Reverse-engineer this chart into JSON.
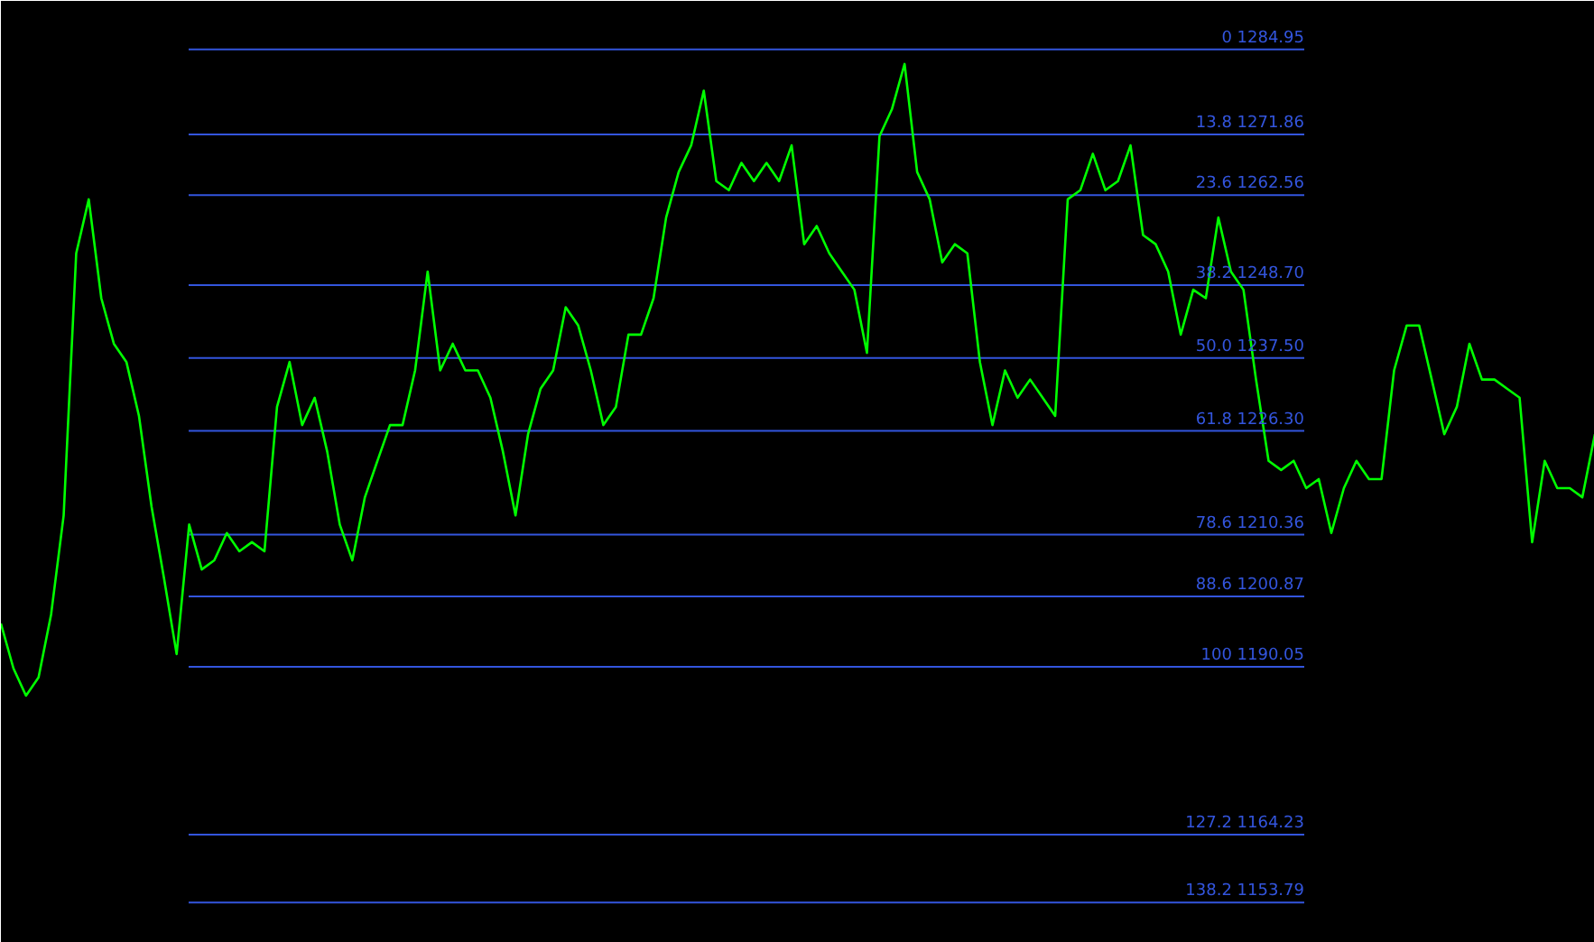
{
  "chart_data": {
    "type": "line",
    "color": "#00ff00",
    "ylim": [
      1147.6,
      1292.4
    ],
    "tick_labels": false,
    "grid": false,
    "categories": [
      null,
      null,
      null,
      null,
      null,
      null,
      null,
      null,
      null,
      null,
      null,
      null,
      null,
      null,
      null,
      null,
      null,
      null,
      null,
      null,
      null,
      null,
      null,
      null,
      null,
      null,
      null,
      null,
      null,
      null,
      null,
      null,
      null,
      null,
      null,
      null,
      null,
      null,
      null,
      null,
      null,
      null,
      null,
      null,
      null,
      null,
      null,
      null,
      null,
      null,
      null,
      null,
      null,
      null,
      null,
      null,
      null,
      null,
      null,
      null,
      null,
      null,
      null,
      null,
      null,
      null,
      null,
      null,
      null,
      null,
      null,
      null,
      null,
      null,
      null,
      null,
      null,
      null,
      null,
      null,
      null,
      null,
      null,
      null,
      null,
      null,
      null,
      null,
      null,
      null,
      null,
      null,
      null,
      null,
      null,
      null,
      null,
      null,
      null,
      null,
      null,
      null,
      null,
      null,
      null,
      null,
      null,
      null,
      null,
      null,
      null,
      null,
      null,
      null,
      null,
      null,
      null,
      null,
      null,
      null,
      null,
      null,
      null,
      null,
      null,
      null,
      null,
      null
    ],
    "values": [
      1196.7,
      1189.8,
      1185.6,
      1188.4,
      1198.1,
      1213.3,
      1253.6,
      1261.9,
      1246.7,
      1239.7,
      1236.9,
      1228.6,
      1214.7,
      1203.6,
      1192.0,
      1211.9,
      1205.0,
      1206.4,
      1210.6,
      1207.8,
      1209.2,
      1207.8,
      1230.0,
      1236.9,
      1227.2,
      1231.4,
      1223.1,
      1211.9,
      1206.4,
      1216.1,
      1221.7,
      1227.2,
      1227.2,
      1235.6,
      1250.8,
      1235.6,
      1239.7,
      1235.6,
      1235.6,
      1231.4,
      1223.1,
      1213.3,
      1225.8,
      1232.8,
      1235.6,
      1245.3,
      1242.5,
      1235.6,
      1227.2,
      1230.0,
      1241.1,
      1241.1,
      1246.7,
      1259.1,
      1266.1,
      1270.2,
      1278.6,
      1264.7,
      1263.3,
      1267.5,
      1264.7,
      1267.5,
      1264.7,
      1270.2,
      1255.0,
      1257.8,
      1253.6,
      1250.8,
      1248.0,
      1238.3,
      1271.6,
      1275.8,
      1282.7,
      1266.1,
      1261.9,
      1252.2,
      1255.0,
      1253.6,
      1236.9,
      1227.2,
      1235.6,
      1231.4,
      1234.2,
      1231.4,
      1228.6,
      1261.9,
      1263.3,
      1268.9,
      1263.3,
      1264.7,
      1270.2,
      1256.4,
      1255.0,
      1250.8,
      1241.1,
      1248.0,
      1246.7,
      1259.1,
      1250.8,
      1248.0,
      1234.2,
      1221.7,
      1220.3,
      1221.7,
      1217.5,
      1218.9,
      1210.6,
      1217.5,
      1221.7,
      1218.9,
      1218.9,
      1235.6,
      1242.5,
      1242.5,
      1234.2,
      1225.8,
      1230.0,
      1239.7,
      1234.2,
      1234.2,
      1232.8,
      1231.4,
      1209.2,
      1221.7,
      1217.5,
      1217.5,
      1216.1,
      1225.8
    ],
    "ref_lines": [
      {
        "axis": "y",
        "value": 1284.95,
        "label": "0 1284.95",
        "color": "#3355dd"
      },
      {
        "axis": "y",
        "value": 1271.86,
        "label": "13.8 1271.86",
        "color": "#3355dd"
      },
      {
        "axis": "y",
        "value": 1262.56,
        "label": "23.6 1262.56",
        "color": "#3355dd"
      },
      {
        "axis": "y",
        "value": 1248.7,
        "label": "38.2 1248.70",
        "color": "#3355dd"
      },
      {
        "axis": "y",
        "value": 1237.5,
        "label": "50.0 1237.50",
        "color": "#3355dd"
      },
      {
        "axis": "y",
        "value": 1226.3,
        "label": "61.8 1226.30",
        "color": "#3355dd"
      },
      {
        "axis": "y",
        "value": 1210.36,
        "label": "78.6 1210.36",
        "color": "#3355dd"
      },
      {
        "axis": "y",
        "value": 1200.87,
        "label": "88.6 1200.87",
        "color": "#3355dd"
      },
      {
        "axis": "y",
        "value": 1190.05,
        "label": "100 1190.05",
        "color": "#3355dd"
      },
      {
        "axis": "y",
        "value": 1164.23,
        "label": "127.2 1164.23",
        "color": "#3355dd"
      },
      {
        "axis": "y",
        "value": 1153.79,
        "label": "138.2 1153.79",
        "color": "#3355dd"
      }
    ]
  }
}
